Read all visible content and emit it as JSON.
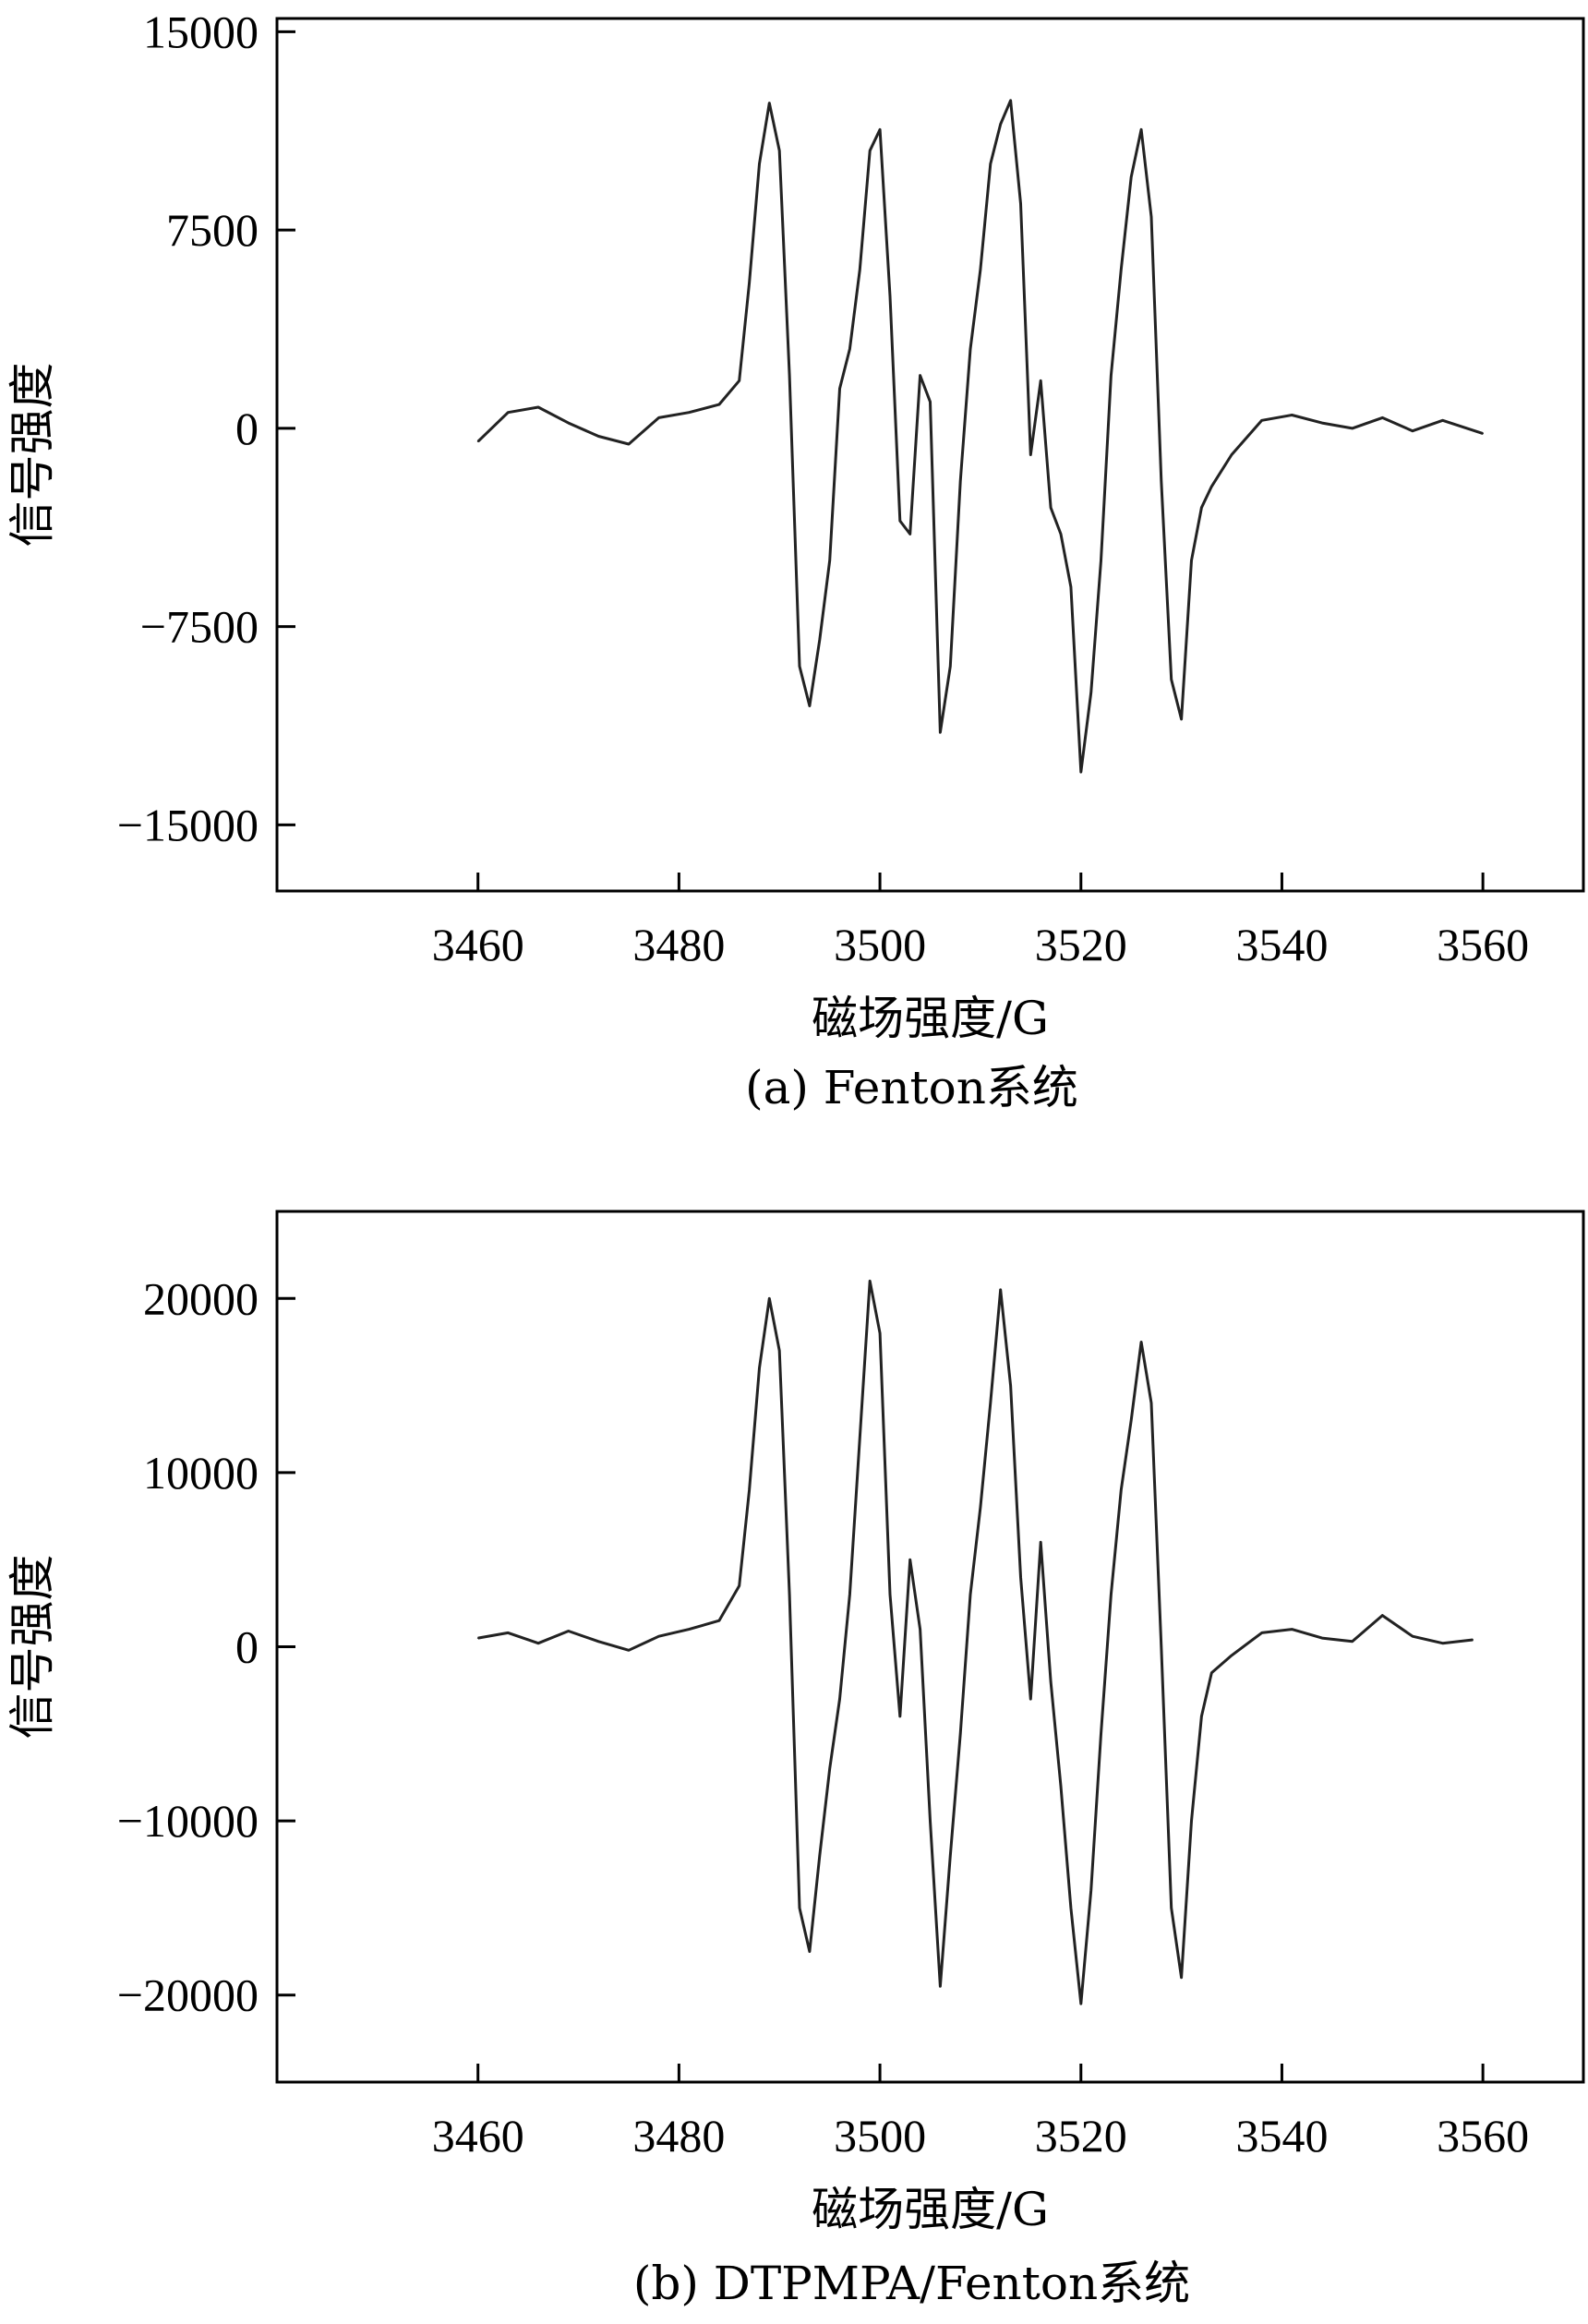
{
  "chart_data": [
    {
      "type": "line",
      "caption": "(a) Fenton系统",
      "xlabel": "磁场强度/G",
      "ylabel": "信号强度",
      "xlim": [
        3440,
        3570
      ],
      "ylim": [
        -17500,
        15500
      ],
      "xticks": [
        3460,
        3480,
        3500,
        3520,
        3540,
        3560
      ],
      "yticks": [
        -15000,
        -7500,
        0,
        7500,
        15000
      ],
      "ytick_labels": [
        "−15000",
        "−7500",
        "0",
        "7500",
        "15000"
      ],
      "grid": false,
      "legend": "none",
      "series": [
        {
          "color": "#222222",
          "x": [
            3460,
            3463,
            3466,
            3469,
            3472,
            3475,
            3478,
            3481,
            3484,
            3486,
            3487,
            3488,
            3489,
            3490,
            3491,
            3492,
            3493,
            3494,
            3495,
            3496,
            3497,
            3498,
            3499,
            3500,
            3501,
            3502,
            3503,
            3504,
            3505,
            3506,
            3507,
            3508,
            3509,
            3510,
            3511,
            3512,
            3513,
            3514,
            3515,
            3516,
            3517,
            3518,
            3519,
            3520,
            3521,
            3522,
            3523,
            3524,
            3525,
            3526,
            3527,
            3528,
            3529,
            3530,
            3531,
            3532,
            3533,
            3535,
            3538,
            3541,
            3544,
            3547,
            3550,
            3553,
            3556,
            3560
          ],
          "y": [
            -500,
            600,
            800,
            200,
            -300,
            -600,
            400,
            600,
            900,
            1800,
            5500,
            10000,
            12300,
            10500,
            2000,
            -9000,
            -10500,
            -8000,
            -5000,
            1500,
            3000,
            6000,
            10500,
            11300,
            5000,
            -3500,
            -4000,
            2000,
            1000,
            -11500,
            -9000,
            -2000,
            3000,
            6000,
            10000,
            11500,
            12400,
            8500,
            -1000,
            1800,
            -3000,
            -4000,
            -6000,
            -13000,
            -10000,
            -5000,
            2000,
            6000,
            9500,
            11300,
            8000,
            -2000,
            -9500,
            -11000,
            -5000,
            -3000,
            -2200,
            -1000,
            300,
            500,
            200,
            0,
            400,
            -100,
            300,
            -200
          ]
        }
      ]
    },
    {
      "type": "line",
      "caption": "(b) DTPMPA/Fenton系统",
      "xlabel": "磁场强度/G",
      "ylabel": "信号强度",
      "xlim": [
        3440,
        3570
      ],
      "ylim": [
        -25000,
        25000
      ],
      "xticks": [
        3460,
        3480,
        3500,
        3520,
        3540,
        3560
      ],
      "yticks": [
        -20000,
        -10000,
        0,
        10000,
        20000
      ],
      "ytick_labels": [
        "−20000",
        "−10000",
        "0",
        "10000",
        "20000"
      ],
      "grid": false,
      "legend": "none",
      "series": [
        {
          "color": "#222222",
          "x": [
            3460,
            3463,
            3466,
            3469,
            3472,
            3475,
            3478,
            3481,
            3484,
            3486,
            3487,
            3488,
            3489,
            3490,
            3491,
            3492,
            3493,
            3494,
            3495,
            3496,
            3497,
            3498,
            3499,
            3500,
            3501,
            3502,
            3503,
            3504,
            3505,
            3506,
            3507,
            3508,
            3509,
            3510,
            3511,
            3512,
            3513,
            3514,
            3515,
            3516,
            3517,
            3518,
            3519,
            3520,
            3521,
            3522,
            3523,
            3524,
            3525,
            3526,
            3527,
            3528,
            3529,
            3530,
            3531,
            3532,
            3533,
            3535,
            3538,
            3541,
            3544,
            3547,
            3550,
            3553,
            3556,
            3559
          ],
          "y": [
            500,
            800,
            200,
            900,
            300,
            -200,
            600,
            1000,
            1500,
            3500,
            9000,
            16000,
            20000,
            17000,
            3000,
            -15000,
            -17500,
            -12000,
            -7000,
            -3000,
            3000,
            12000,
            21000,
            18000,
            3000,
            -4000,
            5000,
            1000,
            -10000,
            -19500,
            -12000,
            -5000,
            3000,
            8000,
            14000,
            20500,
            15000,
            4000,
            -3000,
            6000,
            -2000,
            -8000,
            -15000,
            -20500,
            -14000,
            -5000,
            3000,
            9000,
            13000,
            17500,
            14000,
            0,
            -15000,
            -19000,
            -10000,
            -4000,
            -1500,
            -500,
            800,
            1000,
            500,
            300,
            1800,
            600,
            200,
            400
          ]
        }
      ]
    }
  ]
}
